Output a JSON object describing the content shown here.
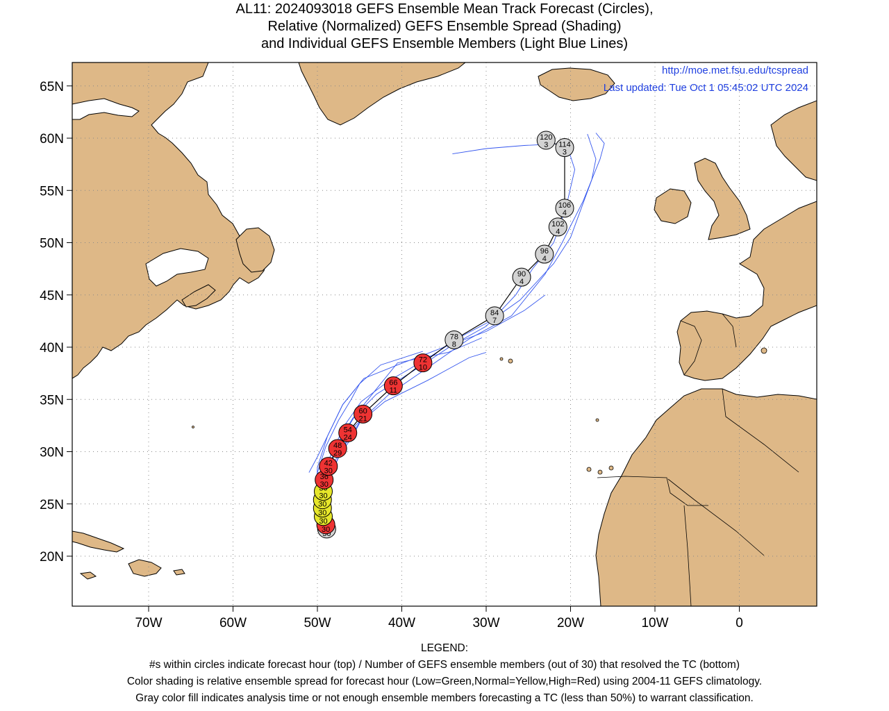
{
  "title": {
    "line1": "AL11: 2024093018 GEFS Ensemble Mean Track Forecast (Circles),",
    "line2": "Relative (Normalized) GEFS Ensemble Spread (Shading)",
    "line3": "and Individual GEFS Ensemble Members (Light Blue Lines)"
  },
  "info": {
    "url": "http://moe.met.fsu.edu/tcspread",
    "updated": "Last updated: Tue Oct 1 05:45:02 UTC 2024"
  },
  "axes": {
    "lat_labels": [
      "65N",
      "60N",
      "55N",
      "50N",
      "45N",
      "40N",
      "35N",
      "30N",
      "25N",
      "20N"
    ],
    "lon_labels": [
      "70W",
      "60W",
      "50W",
      "40W",
      "30W",
      "20W",
      "10W",
      "0"
    ]
  },
  "legend": {
    "heading": "LEGEND:",
    "line1": "#s within circles indicate forecast hour (top) / Number of GEFS ensemble members (out of 30) that resolved the TC (bottom)",
    "line2": "Color shading is relative ensemble spread for forecast hour (Low=Green,Normal=Yellow,High=Red) using 2004-11 GEFS climatology.",
    "line3": "Gray color fill indicates analysis time or not enough ensemble members forecasting a TC (less than 50%) to warrant classification."
  },
  "colors": {
    "land": "#deb887",
    "ocean": "#ffffff",
    "member_track": "#3355ee",
    "mean_track": "#000000",
    "high_spread": "#ee3333",
    "normal_spread": "#e6e62a",
    "gray": "#d3d3d3",
    "text_blue": "#2040e0"
  },
  "track": [
    {
      "hour": "0",
      "members": "30",
      "lon": -48.9,
      "lat": 22.6,
      "fill": "gray"
    },
    {
      "hour": "6",
      "members": "30",
      "lon": -49.0,
      "lat": 23.0,
      "fill": "high_spread"
    },
    {
      "hour": "12",
      "members": "30",
      "lon": -49.3,
      "lat": 23.8,
      "fill": "normal_spread"
    },
    {
      "hour": "18",
      "members": "30",
      "lon": -49.4,
      "lat": 24.6,
      "fill": "normal_spread"
    },
    {
      "hour": "24",
      "members": "30",
      "lon": -49.4,
      "lat": 25.4,
      "fill": "normal_spread"
    },
    {
      "hour": "30",
      "members": "30",
      "lon": -49.3,
      "lat": 26.2,
      "fill": "normal_spread"
    },
    {
      "hour": "36",
      "members": "30",
      "lon": -49.2,
      "lat": 27.3,
      "fill": "high_spread"
    },
    {
      "hour": "42",
      "members": "30",
      "lon": -48.7,
      "lat": 28.6,
      "fill": "high_spread"
    },
    {
      "hour": "48",
      "members": "29",
      "lon": -47.6,
      "lat": 30.3,
      "fill": "high_spread"
    },
    {
      "hour": "54",
      "members": "24",
      "lon": -46.4,
      "lat": 31.8,
      "fill": "high_spread"
    },
    {
      "hour": "60",
      "members": "21",
      "lon": -44.6,
      "lat": 33.6,
      "fill": "high_spread"
    },
    {
      "hour": "66",
      "members": "11",
      "lon": -41.0,
      "lat": 36.3,
      "fill": "high_spread"
    },
    {
      "hour": "72",
      "members": "10",
      "lon": -37.5,
      "lat": 38.5,
      "fill": "high_spread"
    },
    {
      "hour": "78",
      "members": "8",
      "lon": -33.8,
      "lat": 40.7,
      "fill": "gray"
    },
    {
      "hour": "84",
      "members": "7",
      "lon": -29.0,
      "lat": 43.0,
      "fill": "gray"
    },
    {
      "hour": "90",
      "members": "4",
      "lon": -25.8,
      "lat": 46.7,
      "fill": "gray"
    },
    {
      "hour": "96",
      "members": "4",
      "lon": -23.1,
      "lat": 48.9,
      "fill": "gray"
    },
    {
      "hour": "102",
      "members": "4",
      "lon": -21.5,
      "lat": 51.5,
      "fill": "gray"
    },
    {
      "hour": "106",
      "members": "4",
      "lon": -20.7,
      "lat": 53.3,
      "fill": "gray"
    },
    {
      "hour": "114",
      "members": "3",
      "lon": -20.7,
      "lat": 59.1,
      "fill": "gray"
    },
    {
      "hour": "120",
      "members": "3",
      "lon": -22.9,
      "lat": 59.8,
      "fill": "gray"
    }
  ],
  "members": [
    [
      [
        -49.5,
        22.5
      ],
      [
        -49.8,
        24
      ],
      [
        -50.1,
        26
      ],
      [
        -50.0,
        28.5
      ],
      [
        -48.8,
        31.5
      ],
      [
        -47.0,
        34.5
      ],
      [
        -44.5,
        37.0
      ],
      [
        -40.5,
        38.3
      ],
      [
        -35.0,
        40.0
      ],
      [
        -30.0,
        41.5
      ],
      [
        -25.5,
        43.5
      ],
      [
        -23.0,
        45.0
      ]
    ],
    [
      [
        -49.2,
        22.6
      ],
      [
        -49.5,
        24.5
      ],
      [
        -49.3,
        27
      ],
      [
        -48.5,
        29.5
      ],
      [
        -46.8,
        32.5
      ],
      [
        -44.8,
        34.8
      ],
      [
        -41.5,
        36.8
      ],
      [
        -37.0,
        38.9
      ],
      [
        -33.0,
        41.0
      ],
      [
        -29.5,
        42.5
      ],
      [
        -26.0,
        44.5
      ],
      [
        -22.0,
        48.0
      ],
      [
        -20.0,
        50.5
      ],
      [
        -17.5,
        56.0
      ],
      [
        -17.0,
        58.0
      ],
      [
        -18.0,
        60.4
      ]
    ],
    [
      [
        -49.0,
        22.8
      ],
      [
        -49.3,
        25
      ],
      [
        -48.9,
        28
      ],
      [
        -47.6,
        30.8
      ],
      [
        -45.8,
        33.2
      ],
      [
        -43.0,
        35.5
      ],
      [
        -38.5,
        37.8
      ],
      [
        -34.0,
        40.2
      ],
      [
        -30.0,
        42.0
      ],
      [
        -26.5,
        45.0
      ],
      [
        -24.5,
        47.5
      ],
      [
        -22.0,
        50.0
      ],
      [
        -20.5,
        53.5
      ],
      [
        -19.5,
        57.0
      ],
      [
        -20.5,
        59.5
      ],
      [
        -25.5,
        59.3
      ],
      [
        -30.0,
        59.0
      ],
      [
        -34.0,
        58.5
      ]
    ],
    [
      [
        -48.8,
        22.5
      ],
      [
        -49.0,
        24.5
      ],
      [
        -49.0,
        26.5
      ],
      [
        -48.6,
        28.5
      ],
      [
        -47.4,
        31.0
      ],
      [
        -45.5,
        33.5
      ],
      [
        -43.0,
        36.0
      ],
      [
        -40.5,
        38.5
      ],
      [
        -34.5,
        39.5
      ],
      [
        -30.5,
        40.9
      ]
    ],
    [
      [
        -49.0,
        23
      ],
      [
        -49.6,
        25.5
      ],
      [
        -50.0,
        28.0
      ],
      [
        -49.0,
        30.5
      ],
      [
        -47.5,
        33.0
      ],
      [
        -46.0,
        35.0
      ],
      [
        -45.0,
        36.5
      ],
      [
        -42.5,
        38.3
      ],
      [
        -37.5,
        39.6
      ]
    ],
    [
      [
        -48.7,
        23
      ],
      [
        -48.9,
        25.5
      ],
      [
        -48.3,
        28.0
      ],
      [
        -47.0,
        30.3
      ],
      [
        -45.0,
        32.8
      ],
      [
        -42.0,
        34.8
      ],
      [
        -37.0,
        36.8
      ],
      [
        -32.0,
        39.0
      ],
      [
        -30.0,
        39.5
      ]
    ],
    [
      [
        -49.0,
        22.8
      ],
      [
        -49.0,
        25.0
      ],
      [
        -48.5,
        27.5
      ],
      [
        -47.5,
        29.5
      ],
      [
        -45.8,
        31.5
      ],
      [
        -44.5,
        33.5
      ]
    ],
    [
      [
        -51.0,
        28.0
      ],
      [
        -50.0,
        29.5
      ],
      [
        -48.5,
        32.0
      ],
      [
        -47.0,
        34.5
      ],
      [
        -45.5,
        36.0
      ]
    ],
    [
      [
        -49.2,
        23
      ],
      [
        -49.0,
        26.0
      ],
      [
        -48.0,
        29.0
      ],
      [
        -45.5,
        32.5
      ],
      [
        -41.5,
        35.5
      ],
      [
        -37.0,
        38.0
      ],
      [
        -32.0,
        40.8
      ],
      [
        -27.0,
        43.0
      ],
      [
        -23.0,
        47.0
      ],
      [
        -21.0,
        50.0
      ],
      [
        -18.5,
        54.0
      ],
      [
        -16.5,
        58.0
      ],
      [
        -16.0,
        59.5
      ],
      [
        -17.0,
        60.5
      ]
    ]
  ]
}
